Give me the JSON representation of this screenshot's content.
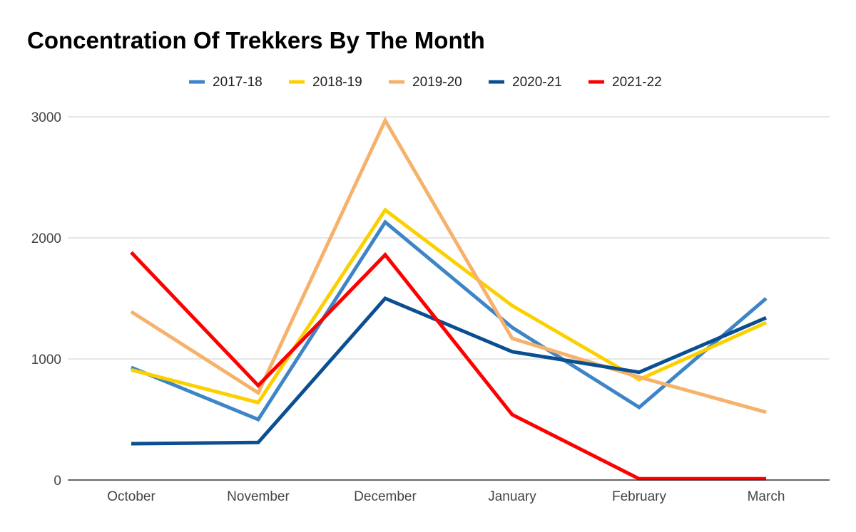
{
  "chart_data": {
    "type": "line",
    "title": "Concentration Of Trekkers By The Month",
    "xlabel": "",
    "ylabel": "",
    "categories": [
      "October",
      "November",
      "December",
      "January",
      "February",
      "March"
    ],
    "ylim": [
      0,
      3000
    ],
    "yticks": [
      0,
      1000,
      2000,
      3000
    ],
    "grid": true,
    "legend_position": "top",
    "series": [
      {
        "name": "2017-18",
        "color": "#3d85c6",
        "values": [
          930,
          500,
          2130,
          1260,
          600,
          1500
        ]
      },
      {
        "name": "2018-19",
        "color": "#fcd000",
        "values": [
          910,
          640,
          2230,
          1440,
          830,
          1300
        ]
      },
      {
        "name": "2019-20",
        "color": "#f6b26b",
        "values": [
          1390,
          720,
          2970,
          1170,
          850,
          560
        ]
      },
      {
        "name": "2020-21",
        "color": "#0b4f91",
        "values": [
          300,
          310,
          1500,
          1060,
          890,
          1340
        ]
      },
      {
        "name": "2021-22",
        "color": "#ff0000",
        "values": [
          1880,
          780,
          1860,
          540,
          10,
          10
        ]
      }
    ]
  }
}
